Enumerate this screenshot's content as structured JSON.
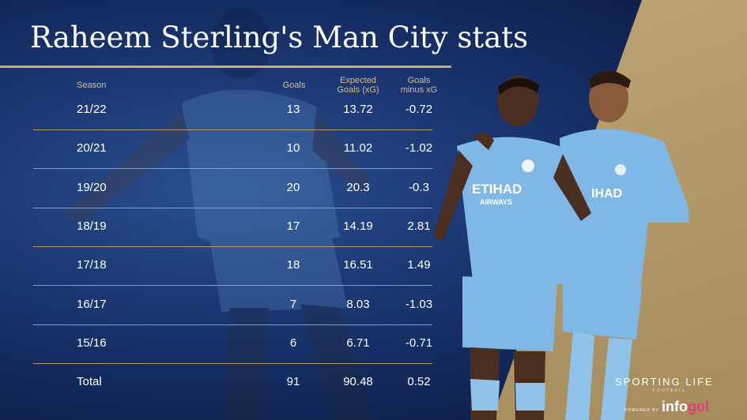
{
  "chart_data": {
    "type": "table",
    "title": "Raheem Sterling's Man City stats",
    "columns": [
      "Season",
      "Goals",
      "Expected Goals (xG)",
      "Goals minus xG"
    ],
    "header_lines": {
      "season": "Season",
      "goals": "Goals",
      "xg_line1": "Expected",
      "xg_line2": "Goals (xG)",
      "diff_line1": "Goals",
      "diff_line2": "minus xG"
    },
    "rows": [
      {
        "season": "21/22",
        "goals": "13",
        "xg": "13.72",
        "diff": "-0.72"
      },
      {
        "season": "20/21",
        "goals": "10",
        "xg": "11.02",
        "diff": "-1.02"
      },
      {
        "season": "19/20",
        "goals": "20",
        "xg": "20.3",
        "diff": "-0.3"
      },
      {
        "season": "18/19",
        "goals": "17",
        "xg": "14.19",
        "diff": "2.81"
      },
      {
        "season": "17/18",
        "goals": "18",
        "xg": "16.51",
        "diff": "1.49"
      },
      {
        "season": "16/17",
        "goals": "7",
        "xg": "8.03",
        "diff": "-1.03"
      },
      {
        "season": "15/16",
        "goals": "6",
        "xg": "6.71",
        "diff": "-0.71"
      },
      {
        "season": "Total",
        "goals": "91",
        "xg": "90.48",
        "diff": "0.52"
      }
    ]
  },
  "branding": {
    "sporting_life": "SPORTING LIFE",
    "football": "FOOTBALL",
    "powered_by": "POWERED BY",
    "infogol_main": "info",
    "infogol_accent": "gol"
  },
  "colors": {
    "background_blue": "#1a3570",
    "gold": "#c7ad78",
    "header_text": "#d8bf86",
    "kit_sky_blue": "#7fb8e6"
  }
}
